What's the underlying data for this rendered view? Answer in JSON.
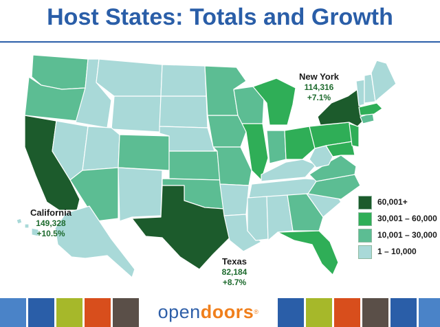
{
  "title": "Host States:  Totals and Growth",
  "colors": {
    "title_blue": "#2a5ea8",
    "tier1": "#1c5b2c",
    "tier2": "#2fae57",
    "tier3": "#5cbd93",
    "tier4": "#a9d9d8",
    "label_green": "#1e6b2e"
  },
  "callouts": {
    "new_york": {
      "name": "New York",
      "total": "114,316",
      "growth": "+7.1%"
    },
    "california": {
      "name": "California",
      "total": "149,328",
      "growth": "+10.5%"
    },
    "texas": {
      "name": "Texas",
      "total": "82,184",
      "growth": "+8.7%"
    }
  },
  "legend": [
    {
      "label": "60,001+",
      "color": "#1c5b2c"
    },
    {
      "label": "30,001 – 60,000",
      "color": "#2fae57"
    },
    {
      "label": "10,001 – 30,000",
      "color": "#5cbd93"
    },
    {
      "label": "1 – 10,000",
      "color": "#a9d9d8"
    }
  ],
  "footer": {
    "logo_part1": "open",
    "logo_part2": "doors",
    "logo_mark": "®",
    "blocks": [
      "#4a83c8",
      "#2a5ea8",
      "#a6b82a",
      "#d84e1c",
      "#5a4f48",
      "#2a5ea8",
      "#a6b82a",
      "#d84e1c",
      "#5a4f48",
      "#2a5ea8"
    ]
  }
}
